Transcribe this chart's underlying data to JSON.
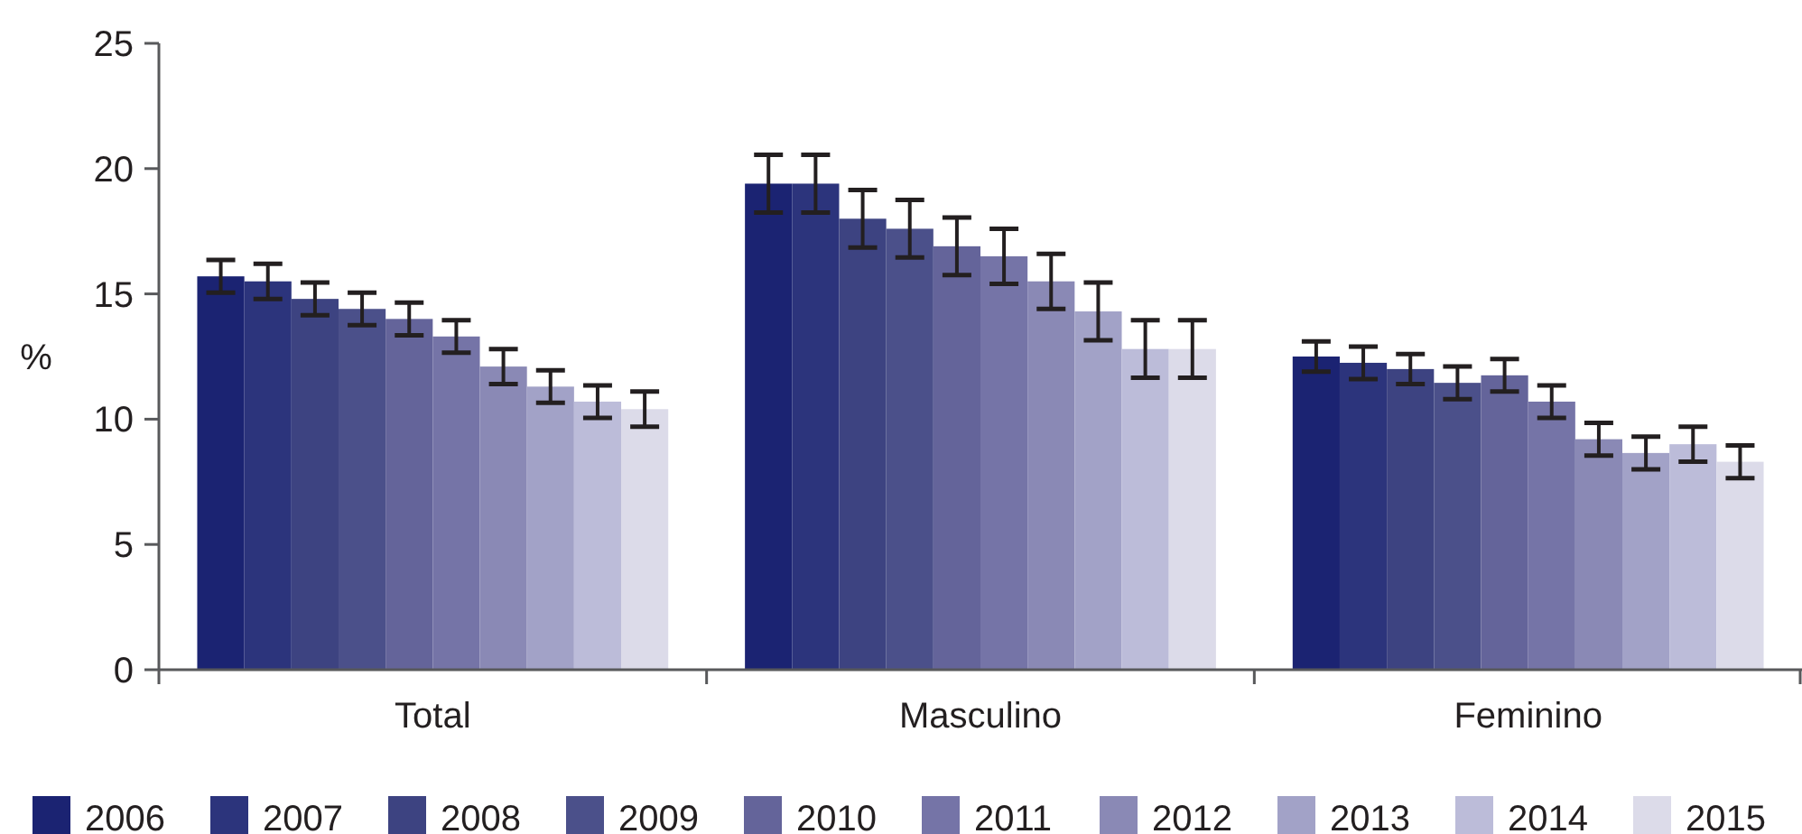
{
  "chart_data": {
    "type": "bar",
    "ylabel": "%",
    "categories": [
      "Total",
      "Masculino",
      "Feminino"
    ],
    "ylim": [
      0,
      25
    ],
    "yticks": [
      0,
      5,
      10,
      15,
      20,
      25
    ],
    "grid": false,
    "legend": "bottom",
    "series": [
      {
        "name": "2006",
        "color": "#1b2372",
        "values": [
          15.7,
          19.4,
          12.5
        ],
        "errors": [
          0.65,
          1.15,
          0.6
        ]
      },
      {
        "name": "2007",
        "color": "#2c347c",
        "values": [
          15.5,
          19.4,
          12.25
        ],
        "errors": [
          0.7,
          1.15,
          0.65
        ]
      },
      {
        "name": "2008",
        "color": "#3d4381",
        "values": [
          14.8,
          18.0,
          12.0
        ],
        "errors": [
          0.65,
          1.15,
          0.6
        ]
      },
      {
        "name": "2009",
        "color": "#4b508a",
        "values": [
          14.4,
          17.6,
          11.45
        ],
        "errors": [
          0.65,
          1.15,
          0.65
        ]
      },
      {
        "name": "2010",
        "color": "#64649a",
        "values": [
          14.0,
          16.9,
          11.75
        ],
        "errors": [
          0.65,
          1.15,
          0.65
        ]
      },
      {
        "name": "2011",
        "color": "#7574a7",
        "values": [
          13.3,
          16.5,
          10.7
        ],
        "errors": [
          0.65,
          1.1,
          0.65
        ]
      },
      {
        "name": "2012",
        "color": "#8a89b5",
        "values": [
          12.1,
          15.5,
          9.2
        ],
        "errors": [
          0.7,
          1.1,
          0.65
        ]
      },
      {
        "name": "2013",
        "color": "#a2a2c7",
        "values": [
          11.3,
          14.3,
          8.65
        ],
        "errors": [
          0.65,
          1.15,
          0.65
        ]
      },
      {
        "name": "2014",
        "color": "#bcbcd9",
        "values": [
          10.7,
          12.8,
          9.0
        ],
        "errors": [
          0.65,
          1.15,
          0.7
        ]
      },
      {
        "name": "2015",
        "color": "#dcdbe9",
        "values": [
          10.4,
          12.8,
          8.3
        ],
        "errors": [
          0.7,
          1.15,
          0.65
        ]
      }
    ]
  }
}
